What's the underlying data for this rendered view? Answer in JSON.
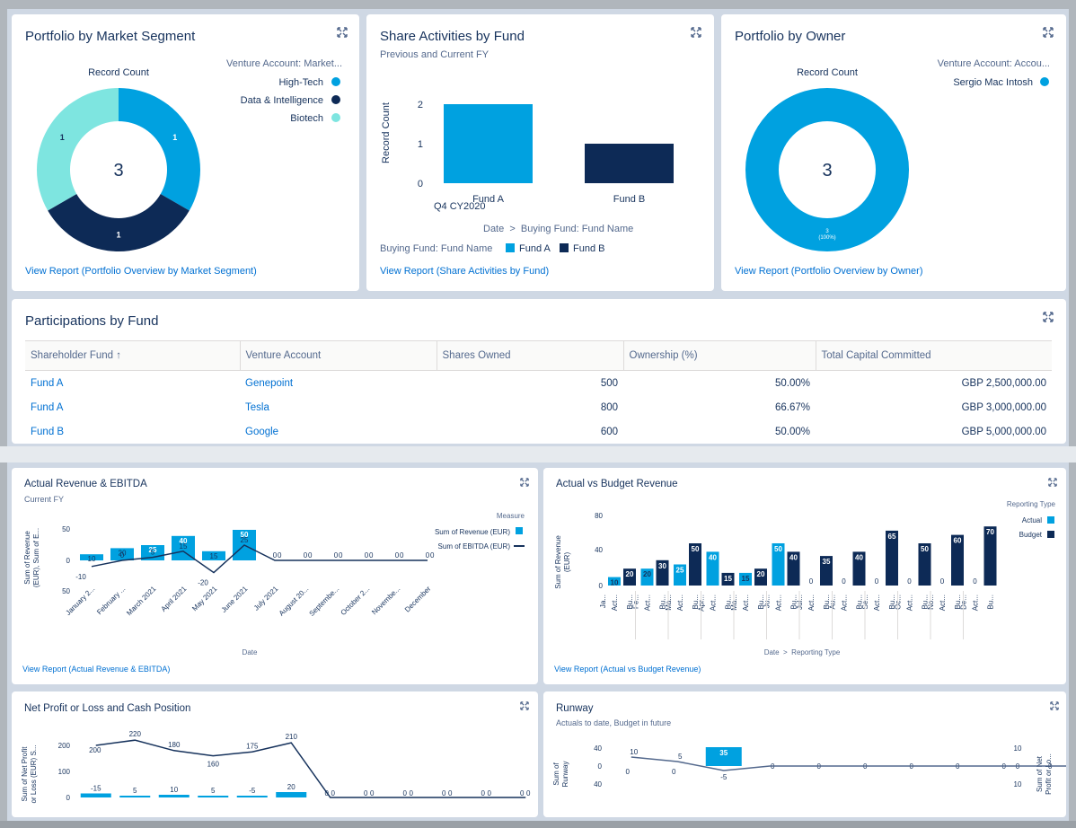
{
  "cards": {
    "segment": {
      "title": "Portfolio by Market Segment",
      "chart_title": "Record Count",
      "legend_title": "Venture Account: Market...",
      "center_value": "3",
      "link": "View Report (Portfolio Overview by Market Segment)"
    },
    "share": {
      "title": "Share Activities by Fund",
      "subtitle": "Previous and Current FY",
      "axis_crumb": "Date  >  Buying Fund: Fund Name",
      "legend_label": "Buying Fund: Fund Name",
      "link": "View Report (Share Activities by Fund)"
    },
    "owner": {
      "title": "Portfolio by Owner",
      "chart_title": "Record Count",
      "legend_title": "Venture Account: Accou...",
      "center_value": "3",
      "ring_label_1": "3",
      "ring_label_2": "(100%)",
      "link": "View Report (Portfolio Overview by Owner)"
    },
    "participations": {
      "title": "Participations by Fund",
      "sort_icon": "arrow-up-icon",
      "columns": [
        "Shareholder Fund",
        "Venture Account",
        "Shares Owned",
        "Ownership (%)",
        "Total Capital Committed"
      ],
      "rows": [
        [
          "Fund A",
          "Genepoint",
          "500",
          "50.00%",
          "GBP 2,500,000.00"
        ],
        [
          "Fund A",
          "Tesla",
          "800",
          "66.67%",
          "GBP 3,000,000.00"
        ],
        [
          "Fund B",
          "Google",
          "600",
          "50.00%",
          "GBP 5,000,000.00"
        ]
      ]
    },
    "revenue": {
      "title": "Actual Revenue & EBITDA",
      "subtitle": "Current FY",
      "legend_title": "Measure",
      "link": "View Report (Actual Revenue & EBITDA)"
    },
    "budget": {
      "title": "Actual vs Budget Revenue",
      "link": "View Report (Actual vs Budget Revenue)"
    },
    "netprofit": {
      "title": "Net Profit or Loss and Cash Position"
    },
    "runway": {
      "title": "Runway",
      "subtitle": "Actuals to date, Budget in future"
    }
  },
  "colors": {
    "light_blue": "#00a1e0",
    "dark_navy": "#0d2a56",
    "teal": "#7ee5e0",
    "link": "#0070d2",
    "title": "#16325c",
    "muted": "#54698d"
  },
  "chart_data": [
    {
      "id": "segment",
      "type": "pie",
      "title": "Record Count",
      "center_label": "3",
      "legend_title": "Venture Account: Market...",
      "legend_position": "top-right",
      "slices": [
        {
          "name": "High-Tech",
          "value": 1,
          "color": "#00a1e0"
        },
        {
          "name": "Data & Intelligence",
          "value": 1,
          "color": "#0d2a56"
        },
        {
          "name": "Biotech",
          "value": 1,
          "color": "#7ee5e0"
        }
      ]
    },
    {
      "id": "share",
      "type": "bar",
      "ylabel": "Record Count",
      "yticks": [
        "0",
        "1",
        "2"
      ],
      "ylim": [
        0,
        2
      ],
      "group_label": "Q4 CY2020",
      "categories": [
        "Fund A",
        "Fund B"
      ],
      "values": [
        2,
        1
      ],
      "colors": [
        "#00a1e0",
        "#0d2a56"
      ],
      "legend_position": "bottom",
      "legend": [
        {
          "name": "Fund A",
          "color": "#00a1e0"
        },
        {
          "name": "Fund B",
          "color": "#0d2a56"
        }
      ]
    },
    {
      "id": "owner",
      "type": "pie",
      "title": "Record Count",
      "center_label": "3",
      "legend_title": "Venture Account: Accou...",
      "legend_position": "top-right",
      "slices": [
        {
          "name": "Sergio Mac Intosh",
          "value": 3,
          "color": "#00a1e0"
        }
      ]
    },
    {
      "id": "revenue",
      "type": "bar",
      "xlabel": "Date",
      "ylabel": "Sum of Revenue (EUR), Sum of E...",
      "yticks": [
        "50",
        "0",
        "50"
      ],
      "ylim": [
        -50,
        50
      ],
      "legend_title": "Measure",
      "legend_position": "right",
      "categories": [
        "January 2...",
        "February ...",
        "March 2021",
        "April 2021",
        "May 2021",
        "June 2021",
        "July 2021",
        "August 20...",
        "Septembe...",
        "October 2...",
        "Novembe...",
        "December"
      ],
      "series": [
        {
          "name": "Sum of Revenue (EUR)",
          "type": "bar",
          "color": "#00a1e0",
          "values": [
            10,
            20,
            25,
            40,
            15,
            50,
            0,
            0,
            0,
            0,
            0,
            0
          ]
        },
        {
          "name": "Sum of EBITDA (EUR)",
          "type": "line",
          "color": "#16325c",
          "values": [
            -10,
            0,
            5,
            15,
            -20,
            25,
            0,
            0,
            0,
            0,
            0,
            0
          ]
        }
      ]
    },
    {
      "id": "budget",
      "type": "bar",
      "xlabel": "Date  >  Reporting Type",
      "ylabel": "Sum of Revenue (EUR)",
      "yticks": [
        "80",
        "40",
        "0"
      ],
      "ylim": [
        0,
        80
      ],
      "legend_title": "Reporting Type",
      "legend_position": "top-right",
      "month_labels": [
        "Ja...",
        "Fe...",
        "Ma...",
        "Apr...",
        "Ma...",
        "Ju...",
        "Jul...",
        "Au...",
        "Se...",
        "Oc...",
        "No...",
        "De..."
      ],
      "sub_labels": [
        "Act...",
        "Bu..."
      ],
      "series": [
        {
          "name": "Actual",
          "color": "#00a1e0",
          "values": [
            10,
            20,
            25,
            40,
            15,
            50,
            0,
            0,
            0,
            0,
            0,
            0
          ]
        },
        {
          "name": "Budget",
          "color": "#0d2a56",
          "values": [
            20,
            30,
            50,
            15,
            20,
            40,
            35,
            40,
            65,
            50,
            60,
            70
          ]
        }
      ]
    },
    {
      "id": "netprofit",
      "type": "bar",
      "ylabel": "Sum of Net Profit or Loss (EUR) S...",
      "yticks": [
        "200",
        "100",
        "0"
      ],
      "series": [
        {
          "name": "Net Profit or Loss",
          "type": "bar",
          "color": "#00a1e0",
          "values": [
            -15,
            5,
            10,
            5,
            -5,
            20,
            0,
            0,
            0,
            0,
            0,
            0
          ]
        },
        {
          "name": "Cash Position",
          "type": "line",
          "color": "#16325c",
          "values": [
            200,
            220,
            180,
            160,
            175,
            210,
            0,
            0,
            0,
            0,
            0,
            0
          ]
        }
      ]
    },
    {
      "id": "runway",
      "type": "bar",
      "ylabel": "Sum of Runway",
      "ylabel_right": "Sum of Net Profit or Lo...",
      "yticks": [
        "40",
        "0",
        "40"
      ],
      "yticks_right": [
        "10",
        "0",
        "10"
      ],
      "series": [
        {
          "name": "Runway",
          "type": "bar",
          "color": "#00a1e0",
          "values": [
            0,
            0,
            35,
            0,
            0,
            0,
            0,
            0,
            0,
            0,
            0,
            0
          ]
        },
        {
          "name": "Net Profit",
          "type": "line",
          "color": "#54698d",
          "values": [
            10,
            5,
            -5,
            0,
            0,
            0,
            0,
            0,
            0,
            0,
            0,
            0
          ]
        }
      ]
    }
  ]
}
